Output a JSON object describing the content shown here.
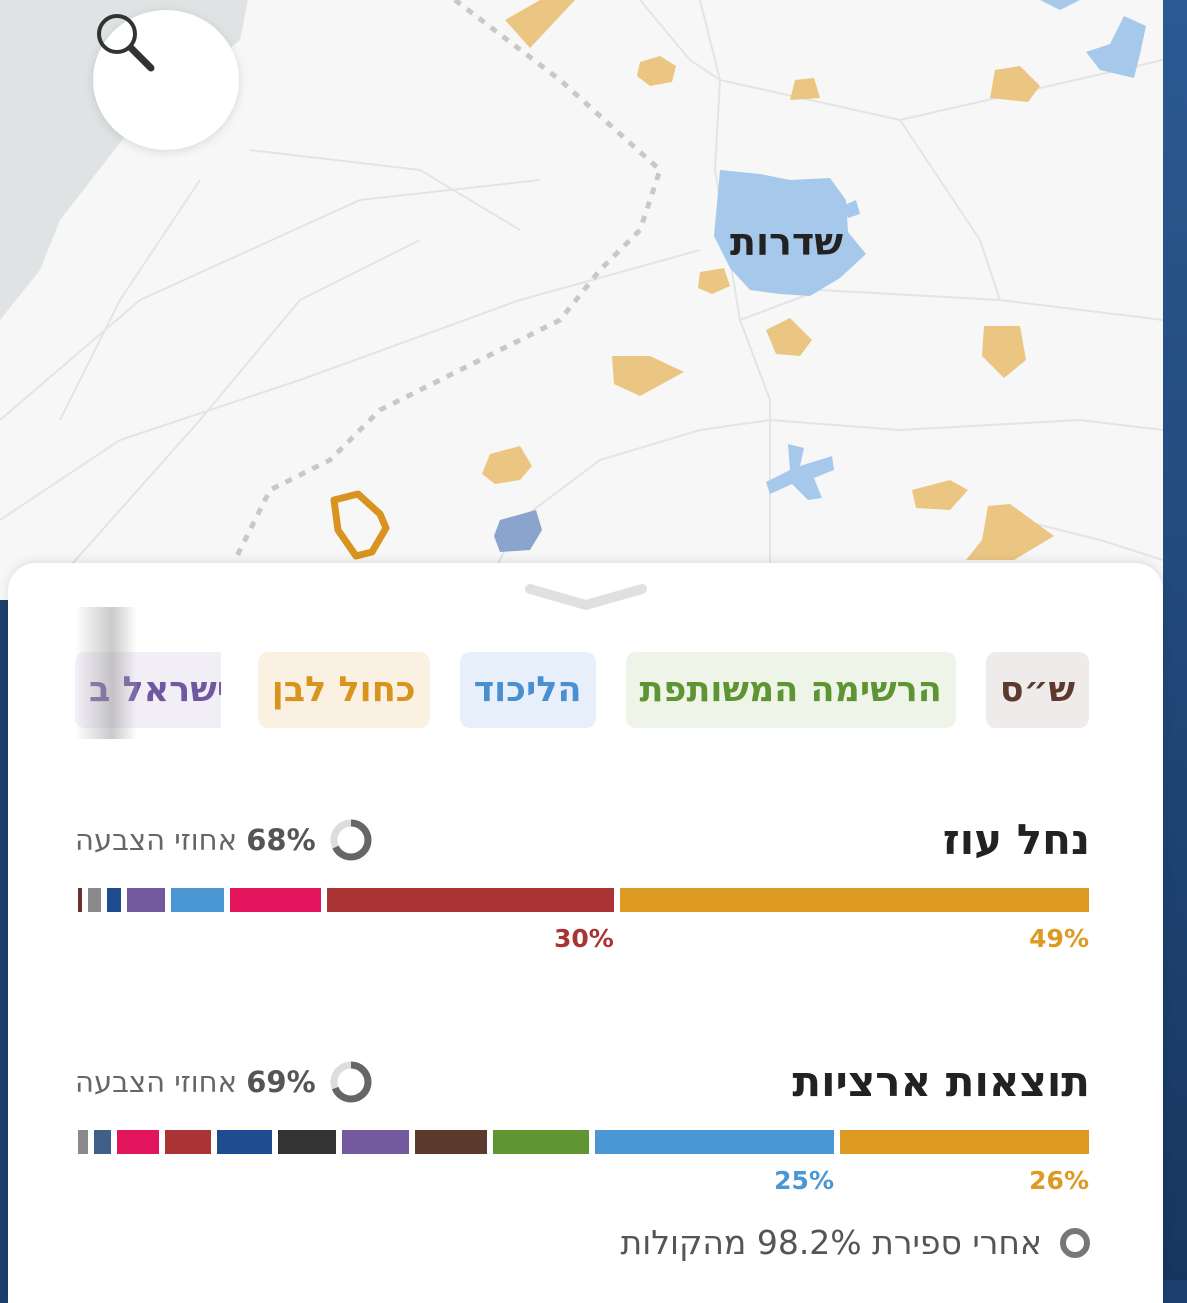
{
  "map": {
    "city_label": "שדרות",
    "search_button": "search-icon"
  },
  "parties": [
    {
      "label": "כחול לבן",
      "color": "#d8941f",
      "bg": "#fbf1e2"
    },
    {
      "label": "הליכוד",
      "color": "#4a90d0",
      "bg": "#e7f0fa"
    },
    {
      "label": "הרשימה המשותפת",
      "color": "#5e9433",
      "bg": "#eef5e8"
    },
    {
      "label": "ש״ס",
      "color": "#5c3a2d",
      "bg": "#efebea"
    },
    {
      "label": "ישראל ב",
      "color": "#6f58a0",
      "bg": "#f1eef6"
    }
  ],
  "local": {
    "title": "נחל עוז",
    "turnout_value": "68%",
    "turnout_label": "אחוזי הצבעה",
    "turnout_fraction": 0.68,
    "results": [
      {
        "party": "כחול לבן",
        "percent": 49,
        "label": "49%",
        "color": "#dc9a22"
      },
      {
        "party": "",
        "percent": 30,
        "label": "30%",
        "color": "#aa3333"
      },
      {
        "party": "",
        "percent": 9.5,
        "label": "",
        "color": "#e2145c"
      },
      {
        "party": "הליכוד",
        "percent": 5.5,
        "label": "",
        "color": "#4a97d4"
      },
      {
        "party": "ישראל ב",
        "percent": 4,
        "label": "",
        "color": "#735a9e"
      },
      {
        "party": "",
        "percent": 1.4,
        "label": "",
        "color": "#1f4b90"
      },
      {
        "party": "",
        "percent": 1.4,
        "label": "",
        "color": "#8a8a8a"
      },
      {
        "party": "",
        "percent": 0.4,
        "label": "",
        "color": "#6e2f2f"
      }
    ]
  },
  "national": {
    "title": "תוצאות ארציות",
    "turnout_value": "69%",
    "turnout_label": "אחוזי הצבעה",
    "turnout_fraction": 0.69,
    "results": [
      {
        "party": "כחול לבן",
        "percent": 26,
        "label": "26%",
        "color": "#dc9a22"
      },
      {
        "party": "הליכוד",
        "percent": 25,
        "label": "25%",
        "color": "#4a97d4"
      },
      {
        "party": "הרשימה המשותפת",
        "percent": 10,
        "label": "",
        "color": "#5f9632"
      },
      {
        "party": "ש״ס",
        "percent": 7.5,
        "label": "",
        "color": "#5c3a2d"
      },
      {
        "party": "ישראל ב",
        "percent": 7,
        "label": "",
        "color": "#735a9e"
      },
      {
        "party": "",
        "percent": 6,
        "label": "",
        "color": "#333333"
      },
      {
        "party": "",
        "percent": 5.8,
        "label": "",
        "color": "#1f4b90"
      },
      {
        "party": "",
        "percent": 4.8,
        "label": "",
        "color": "#aa3333"
      },
      {
        "party": "",
        "percent": 4.4,
        "label": "",
        "color": "#e2145c"
      },
      {
        "party": "",
        "percent": 1.8,
        "label": "",
        "color": "#3f5f88"
      },
      {
        "party": "",
        "percent": 1,
        "label": "",
        "color": "#8a8a8a"
      }
    ]
  },
  "footer": {
    "text": "אחרי ספירת 98.2% מהקולות",
    "icon": "progress-ring-icon"
  }
}
